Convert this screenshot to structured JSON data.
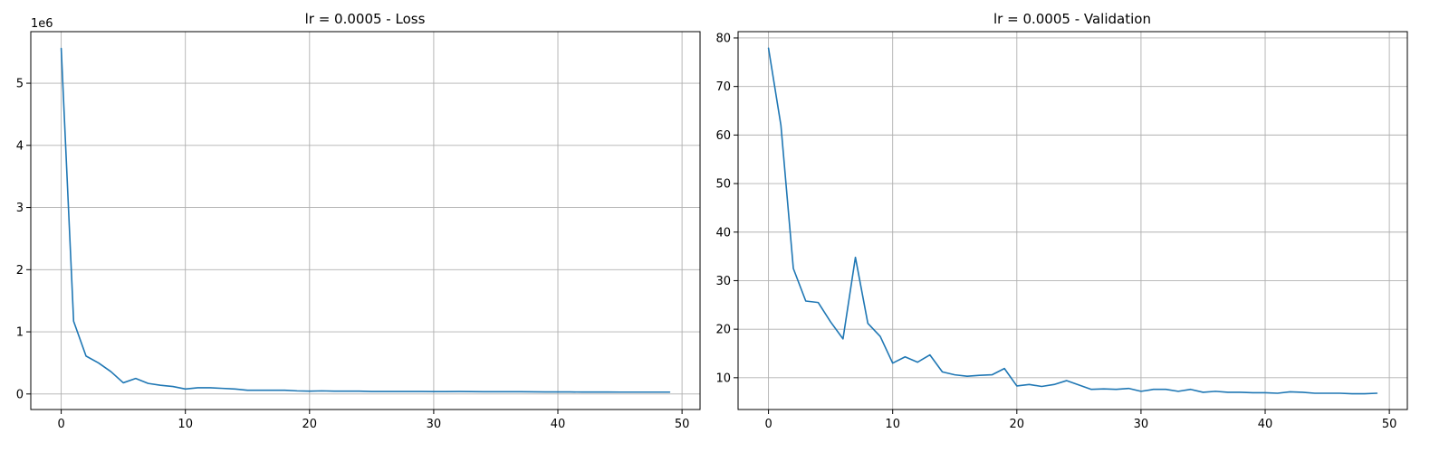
{
  "chart_data": [
    {
      "type": "line",
      "title": "lr = 0.0005 - Loss",
      "xlabel": "",
      "ylabel": "",
      "y_multiplier_label": "1e6",
      "grid": true,
      "xlim": [
        -2.45,
        51.45
      ],
      "ylim": [
        -0.25,
        5.83
      ],
      "xticks": [
        0,
        10,
        20,
        30,
        40,
        50
      ],
      "yticks": [
        0,
        1,
        2,
        3,
        4,
        5
      ],
      "x": [
        0,
        1,
        2,
        3,
        4,
        5,
        6,
        7,
        8,
        9,
        10,
        11,
        12,
        13,
        14,
        15,
        16,
        17,
        18,
        19,
        20,
        21,
        22,
        23,
        24,
        25,
        26,
        27,
        28,
        29,
        30,
        31,
        32,
        33,
        34,
        35,
        36,
        37,
        38,
        39,
        40,
        41,
        42,
        43,
        44,
        45,
        46,
        47,
        48,
        49
      ],
      "series": [
        {
          "color": "#1f77b4",
          "values": [
            5.56,
            1.17,
            0.61,
            0.5,
            0.36,
            0.18,
            0.25,
            0.17,
            0.14,
            0.12,
            0.08,
            0.1,
            0.1,
            0.09,
            0.08,
            0.06,
            0.06,
            0.06,
            0.06,
            0.05,
            0.045,
            0.05,
            0.045,
            0.045,
            0.045,
            0.04,
            0.04,
            0.04,
            0.04,
            0.04,
            0.038,
            0.038,
            0.04,
            0.038,
            0.036,
            0.036,
            0.036,
            0.036,
            0.034,
            0.033,
            0.032,
            0.032,
            0.031,
            0.031,
            0.031,
            0.03,
            0.03,
            0.03,
            0.03,
            0.03
          ]
        }
      ]
    },
    {
      "type": "line",
      "title": "lr = 0.0005 - Validation",
      "xlabel": "",
      "ylabel": "",
      "grid": true,
      "xlim": [
        -2.45,
        51.45
      ],
      "ylim": [
        3.45,
        81.3
      ],
      "xticks": [
        0,
        10,
        20,
        30,
        40,
        50
      ],
      "yticks": [
        10,
        20,
        30,
        40,
        50,
        60,
        70,
        80
      ],
      "x": [
        0,
        1,
        2,
        3,
        4,
        5,
        6,
        7,
        8,
        9,
        10,
        11,
        12,
        13,
        14,
        15,
        16,
        17,
        18,
        19,
        20,
        21,
        22,
        23,
        24,
        25,
        26,
        27,
        28,
        29,
        30,
        31,
        32,
        33,
        34,
        35,
        36,
        37,
        38,
        39,
        40,
        41,
        42,
        43,
        44,
        45,
        46,
        47,
        48,
        49
      ],
      "series": [
        {
          "color": "#1f77b4",
          "values": [
            77.9,
            62.0,
            32.5,
            25.8,
            25.5,
            21.5,
            18.0,
            34.8,
            21.2,
            18.5,
            13.0,
            14.3,
            13.2,
            14.7,
            11.2,
            10.6,
            10.3,
            10.5,
            10.6,
            11.9,
            8.3,
            8.6,
            8.2,
            8.6,
            9.4,
            8.5,
            7.6,
            7.7,
            7.6,
            7.8,
            7.2,
            7.6,
            7.6,
            7.2,
            7.6,
            7.0,
            7.2,
            7.0,
            7.0,
            6.9,
            6.9,
            6.8,
            7.1,
            7.0,
            6.8,
            6.8,
            6.8,
            6.7,
            6.7,
            6.8
          ]
        }
      ]
    }
  ]
}
